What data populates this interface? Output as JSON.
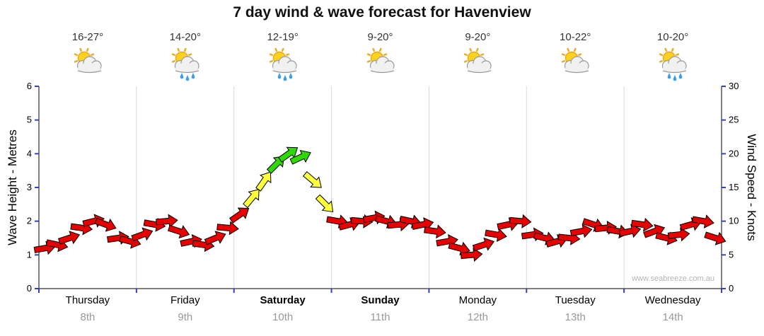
{
  "title": "7 day wind & wave forecast for Havenview",
  "watermark": "www.seabreeze.com.au",
  "axes": {
    "left_label": "Wave Height - Metres",
    "right_label": "Wind Speed - Knots",
    "left_ticks": [
      0,
      1,
      2,
      3,
      4,
      5,
      6
    ],
    "right_ticks": [
      0,
      5,
      10,
      15,
      20,
      25,
      30
    ]
  },
  "days": [
    {
      "name": "Thursday",
      "date": "8th",
      "temp": "16-27°",
      "icon": "sun-cloud",
      "bold": false
    },
    {
      "name": "Friday",
      "date": "9th",
      "temp": "14-20°",
      "icon": "sun-cloud-rain",
      "bold": false
    },
    {
      "name": "Saturday",
      "date": "10th",
      "temp": "12-19°",
      "icon": "sun-cloud-rain",
      "bold": true
    },
    {
      "name": "Sunday",
      "date": "11th",
      "temp": "9-20°",
      "icon": "sun-cloud",
      "bold": true
    },
    {
      "name": "Monday",
      "date": "12th",
      "temp": "9-20°",
      "icon": "sun-cloud",
      "bold": false
    },
    {
      "name": "Tuesday",
      "date": "13th",
      "temp": "10-22°",
      "icon": "sun-cloud",
      "bold": false
    },
    {
      "name": "Wednesday",
      "date": "14th",
      "temp": "10-20°",
      "icon": "sun-cloud-rain",
      "bold": false
    }
  ],
  "chart_data": {
    "type": "scatter",
    "subtype": "wind-direction-arrows",
    "x_unit": "3-hourly steps across 7 days",
    "points_per_day": 8,
    "wave_axis_range": [
      0,
      6
    ],
    "wind_axis_range": [
      0,
      30
    ],
    "color_thresholds": {
      "yellow_from_knots": 12,
      "green_from_knots": 18
    },
    "colors": {
      "red": "#e80000",
      "yellow": "#ffff3c",
      "green": "#2fd800",
      "tick": "#3340c8",
      "grid": "#d9d9d9",
      "axis": "#000000"
    },
    "points_format": [
      "wind_speed_knots",
      "arrow_direction_deg (0=east, negative=up-right)"
    ],
    "points": [
      [
        6,
        -10
      ],
      [
        6.5,
        12
      ],
      [
        7.5,
        -18
      ],
      [
        9,
        8
      ],
      [
        10,
        -14
      ],
      [
        9.5,
        20
      ],
      [
        7.5,
        -8
      ],
      [
        7,
        15
      ],
      [
        8,
        -20
      ],
      [
        9.5,
        10
      ],
      [
        10,
        -5
      ],
      [
        8.5,
        18
      ],
      [
        7,
        -12
      ],
      [
        6.5,
        8
      ],
      [
        7.5,
        -22
      ],
      [
        9,
        5
      ],
      [
        11,
        -35
      ],
      [
        13.5,
        -50
      ],
      [
        16,
        -55
      ],
      [
        18.5,
        -45
      ],
      [
        20,
        -35
      ],
      [
        19.5,
        -25
      ],
      [
        16,
        40
      ],
      [
        12.5,
        45
      ],
      [
        10,
        10
      ],
      [
        9.5,
        -15
      ],
      [
        10,
        5
      ],
      [
        10.5,
        -10
      ],
      [
        10,
        15
      ],
      [
        9.5,
        -5
      ],
      [
        10,
        12
      ],
      [
        9.5,
        -12
      ],
      [
        8.5,
        8
      ],
      [
        7,
        -10
      ],
      [
        6,
        15
      ],
      [
        5,
        -5
      ],
      [
        6.5,
        -18
      ],
      [
        8,
        10
      ],
      [
        9.5,
        -12
      ],
      [
        10,
        5
      ],
      [
        8,
        -8
      ],
      [
        7.5,
        14
      ],
      [
        7,
        -16
      ],
      [
        7.5,
        6
      ],
      [
        8.5,
        -10
      ],
      [
        9.5,
        18
      ],
      [
        9,
        -6
      ],
      [
        8.5,
        10
      ],
      [
        8.5,
        -12
      ],
      [
        9.5,
        8
      ],
      [
        8.5,
        -20
      ],
      [
        7.5,
        14
      ],
      [
        8,
        -6
      ],
      [
        9.5,
        -16
      ],
      [
        10,
        10
      ],
      [
        7.5,
        18
      ]
    ]
  }
}
